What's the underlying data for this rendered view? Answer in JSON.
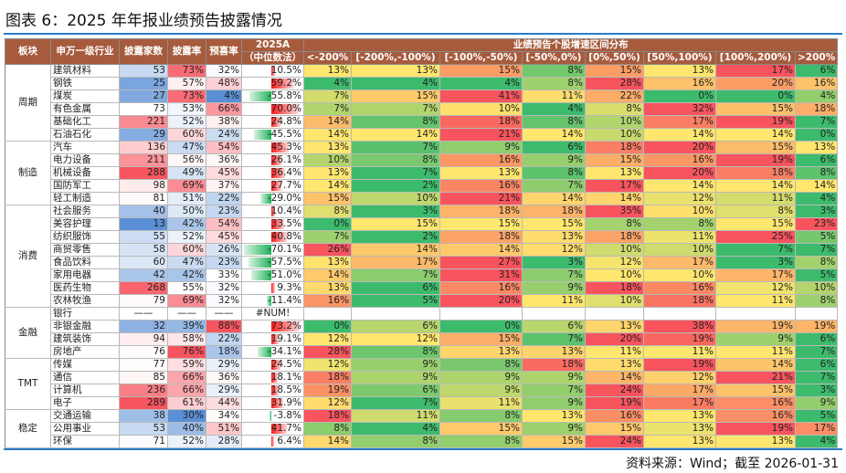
{
  "title": "图表 6：2025 年年报业绩预告披露情况",
  "footer": "资料来源：Wind；截至 2026-01-31",
  "headers": {
    "sector": "板块",
    "industry": "申万一级行业",
    "count": "披露家数",
    "rate": "披露率",
    "positive_rate": "预喜率",
    "median_line1": "2025A",
    "median_line2": "（中位数法）",
    "dist_title": "业绩预告个股增速区间分布",
    "bins": [
      "<-200%",
      "[-200%,-100%)",
      "[-100%,-50%)",
      "[-50%,0%)",
      "[0%,50%)",
      "[50%,100%)",
      "[100%,200%)",
      ">200%"
    ]
  },
  "colors": {
    "header": "#a75b3d",
    "green": "#3dbb6c",
    "yellow": "#ffe66e",
    "red": "#f8545e",
    "blue": "#5a8fd6",
    "bar_red": "#ff1a1a",
    "bar_green": "#1fb35a"
  },
  "groups": [
    {
      "name": "周期",
      "rows": [
        {
          "industry": "建筑材料",
          "count": "53",
          "rate": "73%",
          "pos": "32%",
          "median": "10.5%",
          "dist": [
            "13%",
            "13%",
            "15%",
            "8%",
            "15%",
            "13%",
            "17%",
            "6%"
          ]
        },
        {
          "industry": "钢铁",
          "count": "25",
          "rate": "57%",
          "pos": "48%",
          "median": "59.2%",
          "dist": [
            "4%",
            "4%",
            "4%",
            "8%",
            "28%",
            "16%",
            "20%",
            "16%"
          ]
        },
        {
          "industry": "煤炭",
          "count": "27",
          "rate": "73%",
          "pos": "4%",
          "median": "-55.8%",
          "dist": [
            "7%",
            "15%",
            "41%",
            "11%",
            "22%",
            "0%",
            "0%",
            "4%"
          ]
        },
        {
          "industry": "有色金属",
          "count": "73",
          "rate": "53%",
          "pos": "66%",
          "median": "70.0%",
          "dist": [
            "7%",
            "7%",
            "10%",
            "4%",
            "8%",
            "32%",
            "15%",
            "18%"
          ]
        },
        {
          "industry": "基础化工",
          "count": "221",
          "rate": "52%",
          "pos": "38%",
          "median": "24.8%",
          "dist": [
            "14%",
            "8%",
            "18%",
            "8%",
            "10%",
            "17%",
            "19%",
            "7%"
          ]
        },
        {
          "industry": "石油石化",
          "count": "29",
          "rate": "60%",
          "pos": "24%",
          "median": "-45.5%",
          "dist": [
            "14%",
            "14%",
            "21%",
            "14%",
            "10%",
            "14%",
            "14%",
            "0%"
          ]
        }
      ]
    },
    {
      "name": "制造",
      "rows": [
        {
          "industry": "汽车",
          "count": "136",
          "rate": "47%",
          "pos": "54%",
          "median": "45.3%",
          "dist": [
            "13%",
            "7%",
            "9%",
            "6%",
            "18%",
            "20%",
            "15%",
            "13%"
          ]
        },
        {
          "industry": "电力设备",
          "count": "211",
          "rate": "56%",
          "pos": "36%",
          "median": "26.1%",
          "dist": [
            "10%",
            "8%",
            "16%",
            "9%",
            "15%",
            "16%",
            "19%",
            "6%"
          ]
        },
        {
          "industry": "机械设备",
          "count": "288",
          "rate": "49%",
          "pos": "45%",
          "median": "36.4%",
          "dist": [
            "13%",
            "7%",
            "13%",
            "8%",
            "13%",
            "20%",
            "18%",
            "8%"
          ]
        },
        {
          "industry": "国防军工",
          "count": "98",
          "rate": "69%",
          "pos": "37%",
          "median": "27.7%",
          "dist": [
            "14%",
            "2%",
            "16%",
            "7%",
            "17%",
            "14%",
            "14%",
            "14%"
          ]
        },
        {
          "industry": "轻工制造",
          "count": "81",
          "rate": "51%",
          "pos": "22%",
          "median": "-29.0%",
          "dist": [
            "15%",
            "10%",
            "21%",
            "14%",
            "14%",
            "12%",
            "11%",
            "4%"
          ]
        }
      ]
    },
    {
      "name": "消费",
      "rows": [
        {
          "industry": "社会服务",
          "count": "40",
          "rate": "50%",
          "pos": "23%",
          "median": "10.4%",
          "dist": [
            "8%",
            "3%",
            "18%",
            "18%",
            "35%",
            "10%",
            "8%",
            "3%"
          ]
        },
        {
          "industry": "美容护理",
          "count": "13",
          "rate": "42%",
          "pos": "54%",
          "median": "33.5%",
          "dist": [
            "0%",
            "15%",
            "15%",
            "15%",
            "8%",
            "8%",
            "15%",
            "23%"
          ]
        },
        {
          "industry": "纺织服饰",
          "count": "55",
          "rate": "52%",
          "pos": "45%",
          "median": "40.8%",
          "dist": [
            "7%",
            "2%",
            "18%",
            "13%",
            "18%",
            "11%",
            "25%",
            "5%"
          ]
        },
        {
          "industry": "商贸零售",
          "count": "58",
          "rate": "60%",
          "pos": "26%",
          "median": "-70.1%",
          "dist": [
            "26%",
            "14%",
            "14%",
            "12%",
            "10%",
            "10%",
            "7%",
            "7%"
          ]
        },
        {
          "industry": "食品饮料",
          "count": "60",
          "rate": "47%",
          "pos": "23%",
          "median": "-57.5%",
          "dist": [
            "13%",
            "17%",
            "27%",
            "3%",
            "12%",
            "17%",
            "3%",
            "8%"
          ]
        },
        {
          "industry": "家用电器",
          "count": "42",
          "rate": "42%",
          "pos": "33%",
          "median": "-51.0%",
          "dist": [
            "14%",
            "7%",
            "31%",
            "7%",
            "10%",
            "10%",
            "17%",
            "5%"
          ]
        },
        {
          "industry": "医药生物",
          "count": "268",
          "rate": "55%",
          "pos": "32%",
          "median": "9.3%",
          "dist": [
            "13%",
            "6%",
            "16%",
            "9%",
            "18%",
            "16%",
            "12%",
            "10%"
          ]
        },
        {
          "industry": "农林牧渔",
          "count": "79",
          "rate": "69%",
          "pos": "32%",
          "median": "-11.4%",
          "dist": [
            "16%",
            "5%",
            "20%",
            "11%",
            "10%",
            "18%",
            "11%",
            "8%"
          ]
        }
      ]
    },
    {
      "name": "金融",
      "rows": [
        {
          "industry": "银行",
          "count": "——",
          "rate": "——",
          "pos": "——",
          "median": "#NUM!",
          "dist": [
            "",
            "",
            "",
            "",
            "",
            "",
            "",
            ""
          ]
        },
        {
          "industry": "非银金融",
          "count": "32",
          "rate": "39%",
          "pos": "88%",
          "median": "73.2%",
          "dist": [
            "0%",
            "6%",
            "0%",
            "6%",
            "13%",
            "38%",
            "19%",
            "19%"
          ]
        },
        {
          "industry": "建筑装饰",
          "count": "94",
          "rate": "58%",
          "pos": "22%",
          "median": "19.1%",
          "dist": [
            "12%",
            "12%",
            "15%",
            "7%",
            "20%",
            "19%",
            "9%",
            "6%"
          ]
        },
        {
          "industry": "房地产",
          "count": "76",
          "rate": "76%",
          "pos": "18%",
          "median": "-34.1%",
          "dist": [
            "28%",
            "8%",
            "13%",
            "13%",
            "11%",
            "11%",
            "11%",
            "7%"
          ]
        }
      ]
    },
    {
      "name": "TMT",
      "rows": [
        {
          "industry": "传媒",
          "count": "77",
          "rate": "59%",
          "pos": "29%",
          "median": "24.5%",
          "dist": [
            "12%",
            "9%",
            "8%",
            "18%",
            "13%",
            "19%",
            "14%",
            "6%"
          ]
        },
        {
          "industry": "通信",
          "count": "85",
          "rate": "66%",
          "pos": "36%",
          "median": "18.1%",
          "dist": [
            "18%",
            "9%",
            "9%",
            "9%",
            "14%",
            "12%",
            "21%",
            "7%"
          ]
        },
        {
          "industry": "计算机",
          "count": "236",
          "rate": "66%",
          "pos": "29%",
          "median": "18.5%",
          "dist": [
            "19%",
            "6%",
            "9%",
            "7%",
            "24%",
            "17%",
            "15%",
            "3%"
          ]
        },
        {
          "industry": "电子",
          "count": "289",
          "rate": "61%",
          "pos": "44%",
          "median": "31.9%",
          "dist": [
            "12%",
            "7%",
            "11%",
            "9%",
            "19%",
            "17%",
            "16%",
            "9%"
          ]
        }
      ]
    },
    {
      "name": "稳定",
      "rows": [
        {
          "industry": "交通运输",
          "count": "38",
          "rate": "30%",
          "pos": "34%",
          "median": "-3.8%",
          "dist": [
            "18%",
            "11%",
            "8%",
            "13%",
            "16%",
            "13%",
            "16%",
            "5%"
          ]
        },
        {
          "industry": "公用事业",
          "count": "53",
          "rate": "40%",
          "pos": "51%",
          "median": "41.7%",
          "dist": [
            "8%",
            "4%",
            "15%",
            "9%",
            "15%",
            "13%",
            "19%",
            "17%"
          ]
        },
        {
          "industry": "环保",
          "count": "71",
          "rate": "52%",
          "pos": "28%",
          "median": "6.4%",
          "dist": [
            "14%",
            "8%",
            "8%",
            "15%",
            "24%",
            "13%",
            "13%",
            "4%"
          ]
        }
      ]
    }
  ]
}
